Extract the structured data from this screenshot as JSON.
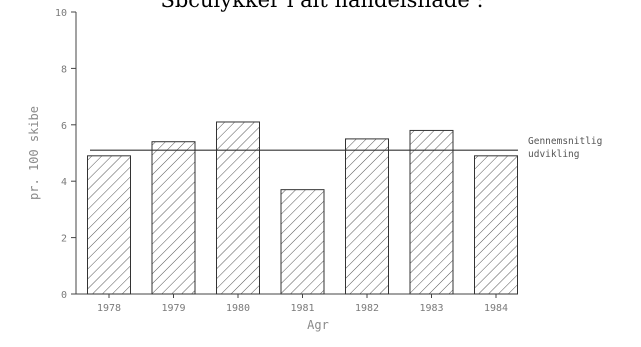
{
  "chart_data": {
    "type": "bar",
    "title": "Sbculykker i alt handelsflåde :",
    "xlabel": "Agr",
    "ylabel": "pr. 100 skibe",
    "categories": [
      "1978",
      "1979",
      "1980",
      "1981",
      "1982",
      "1983",
      "1984"
    ],
    "values": [
      4.9,
      5.4,
      6.1,
      3.7,
      5.5,
      5.8,
      4.9
    ],
    "ylim": [
      0,
      10
    ],
    "yticks": [
      0,
      2,
      4,
      6,
      8,
      10
    ],
    "grid": false,
    "bar_fill": "diagonal-hatch",
    "reference_line": {
      "value": 5.1,
      "label_lines": [
        "Gennemsnitlig",
        "udvikling"
      ]
    }
  }
}
